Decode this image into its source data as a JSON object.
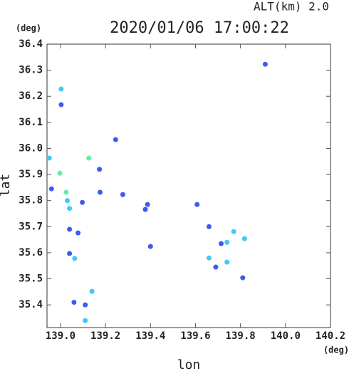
{
  "chart_data": {
    "type": "scatter",
    "title": "2020/01/06 17:00:22",
    "subtitle": "ALT(km)  2.0",
    "y_unit": "(deg)",
    "x_unit": "(deg)",
    "xlabel": "lon",
    "ylabel": "lat",
    "xlim": [
      138.94,
      140.2
    ],
    "ylim": [
      35.313,
      36.4
    ],
    "xticks": [
      {
        "value": 139,
        "label": "139.0"
      },
      139.2,
      139.4,
      139.6,
      139.8,
      {
        "value": 140,
        "label": "140.0"
      },
      140.2
    ],
    "yticks": [
      35.4,
      35.5,
      35.6,
      35.7,
      35.8,
      35.9,
      {
        "value": 36,
        "label": "36.0"
      },
      36.1,
      36.2,
      36.3,
      36.4
    ],
    "x": [
      139.91,
      139.003,
      139.003,
      138.95,
      138.997,
      139.025,
      139.03,
      139.04,
      139.126,
      139.245,
      139.173,
      139.04,
      139.078,
      139.04,
      139.063,
      139.14,
      139.11,
      139.06,
      139.11,
      139.377,
      139.387,
      139.607,
      139.77,
      139.74,
      139.818,
      139.66,
      139.69,
      139.81,
      139.74,
      139.4,
      139.277,
      138.96,
      139.097,
      139.176,
      139.714,
      139.66
    ],
    "values": [
      36.323,
      36.228,
      36.168,
      35.963,
      35.905,
      35.832,
      35.8,
      35.77,
      35.963,
      36.034,
      35.92,
      35.69,
      35.676,
      35.597,
      35.578,
      35.452,
      35.34,
      35.41,
      35.4,
      35.766,
      35.785,
      35.785,
      35.681,
      35.64,
      35.654,
      35.58,
      35.545,
      35.504,
      35.564,
      35.624,
      35.823,
      35.845,
      35.793,
      35.832,
      35.635,
      35.7
    ],
    "colors": [
      "#3a5cf0",
      "#40c8f8",
      "#3a5cf0",
      "#40c8f8",
      "#60f0a0",
      "#60f0a0",
      "#40c8f8",
      "#40c8f8",
      "#60f0a0",
      "#3a5cf0",
      "#3a5cf0",
      "#3a5cf0",
      "#3a5cf0",
      "#3a5cf0",
      "#40c8f8",
      "#40c8f8",
      "#40c8f8",
      "#3a5cf0",
      "#3a5cf0",
      "#3a5cf0",
      "#3a5cf0",
      "#3a5cf0",
      "#40c8f8",
      "#40c8f8",
      "#40c8f8",
      "#40c8f8",
      "#3a5cf0",
      "#3a5cf0",
      "#40c8f8",
      "#3a5cf0",
      "#3a5cf0",
      "#3a5cf0",
      "#3a5cf0",
      "#3a5cf0",
      "#3a5cf0",
      "#3a5cf0"
    ]
  }
}
